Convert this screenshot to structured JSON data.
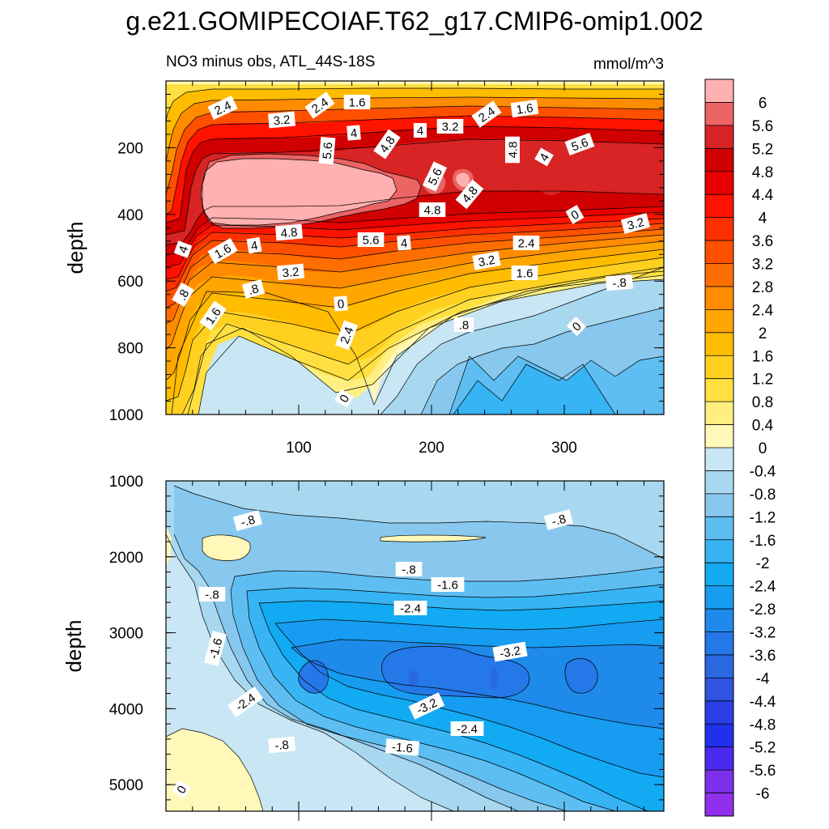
{
  "chart_data": {
    "type": "heatmap",
    "title": "g.e21.GOMIPECOIAF.T62_g17.CMIP6-omip1.002",
    "subtitle": "NO3 minus obs, ATL_44S-18S",
    "units": "mmol/m^3",
    "ylabel": "depth",
    "xticks": [
      "100",
      "200",
      "300"
    ],
    "xlim": [
      0,
      375
    ],
    "upper_panel": {
      "ylim": [
        0,
        1000
      ],
      "yticks": [
        "200",
        "400",
        "600",
        "800",
        "1000"
      ],
      "contour_labels": [
        "2.4",
        "3.2",
        "2.4",
        "1.6",
        "4",
        "4.8",
        "4",
        "3.2",
        "2.4",
        "1.6",
        "5.6",
        "4.8",
        "4",
        "5.6",
        "5.6",
        "4.8",
        "4.8",
        "4",
        "1.6",
        "4",
        "4.8",
        "5.6",
        "4",
        "3.2",
        "2.4",
        "3.2",
        "3.2",
        "1.6",
        ".8",
        "0",
        "2.4",
        "0",
        ".8",
        "1.6",
        ".8",
        "0",
        "0",
        "-.8"
      ]
    },
    "lower_panel": {
      "ylim": [
        1000,
        5350
      ],
      "yticks": [
        "1000",
        "2000",
        "3000",
        "4000",
        "5000"
      ],
      "contour_labels": [
        "-.8",
        "-.8",
        "-.8",
        "-1.6",
        "-.8",
        "-2.4",
        "-1.6",
        "-3.2",
        "-2.4",
        "-3.2",
        "-2.4",
        "-.8",
        "-1.6",
        "0"
      ]
    },
    "colorbar": {
      "levels": [
        "6",
        "5.6",
        "5.2",
        "4.8",
        "4.4",
        "4",
        "3.6",
        "3.2",
        "2.8",
        "2.4",
        "2",
        "1.6",
        "1.2",
        "0.8",
        "0.4",
        "0",
        "-0.4",
        "-0.8",
        "-1.2",
        "-1.6",
        "-2",
        "-2.4",
        "-2.8",
        "-3.2",
        "-3.6",
        "-4",
        "-4.4",
        "-4.8",
        "-5.2",
        "-5.6",
        "-6"
      ],
      "colors": [
        "#FFB0B0",
        "#EC6464",
        "#D82424",
        "#D00000",
        "#E80000",
        "#FF1200",
        "#FF3000",
        "#FF5000",
        "#FF6E00",
        "#FF8C00",
        "#FFA600",
        "#FFBC00",
        "#FFD020",
        "#FFE040",
        "#FFEF80",
        "#FFF8B8",
        "#C8E6F4",
        "#A8D8F0",
        "#88C8EE",
        "#5EBEF2",
        "#36B4F4",
        "#12AAF2",
        "#169CF0",
        "#1E8AEA",
        "#2478E8",
        "#2A68E2",
        "#2E54E0",
        "#2A3EE6",
        "#2030EC",
        "#4A2AEE",
        "#7C30EA",
        "#9030EC"
      ]
    }
  }
}
